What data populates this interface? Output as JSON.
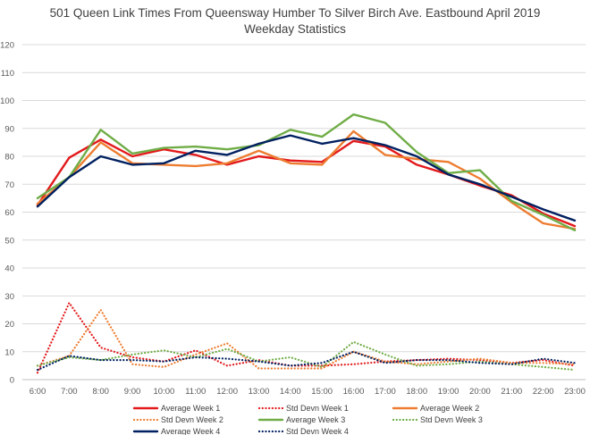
{
  "chart_data": {
    "type": "line",
    "title": "501 Queen Link Times From Queensway Humber To Silver Birch Ave. Eastbound April 2019",
    "subtitle": "Weekday Statistics",
    "xlabel": "",
    "ylabel": "",
    "ylim": [
      0,
      120
    ],
    "yticks": [
      0,
      10,
      20,
      30,
      40,
      50,
      60,
      70,
      80,
      90,
      100,
      110,
      120
    ],
    "grid": true,
    "legend_position": "bottom",
    "categories": [
      "6:00",
      "7:00",
      "8:00",
      "9:00",
      "10:00",
      "11:00",
      "12:00",
      "13:00",
      "14:00",
      "15:00",
      "16:00",
      "17:00",
      "18:00",
      "19:00",
      "20:00",
      "21:00",
      "22:00",
      "23:00"
    ],
    "series": [
      {
        "name": "Average Week 1",
        "color": "#e31a1c",
        "style": "solid",
        "values": [
          62.5,
          79.5,
          86,
          80,
          82.5,
          80.5,
          77,
          80,
          78.5,
          78,
          85.5,
          83.5,
          77,
          73.5,
          69.5,
          66,
          59.5,
          55
        ]
      },
      {
        "name": "Std Devn Week 1",
        "color": "#e31a1c",
        "style": "dotted",
        "values": [
          2.5,
          27.5,
          11.5,
          8,
          6.5,
          10.5,
          5,
          7,
          5,
          5,
          5.5,
          6.5,
          7,
          7.5,
          7,
          6,
          7,
          5
        ]
      },
      {
        "name": "Average Week 2",
        "color": "#ed7d31",
        "style": "solid",
        "values": [
          63,
          72.5,
          85,
          77.5,
          77,
          76.5,
          77.5,
          82,
          77.5,
          77,
          89,
          80.5,
          79,
          78,
          72,
          63.5,
          56,
          54
        ]
      },
      {
        "name": "Std Devn Week 2",
        "color": "#ed7d31",
        "style": "dotted",
        "values": [
          5,
          8.5,
          25,
          5.5,
          4.5,
          9,
          13,
          4,
          4,
          4,
          10,
          6.5,
          5.5,
          6.5,
          7.5,
          6,
          6,
          5.5
        ]
      },
      {
        "name": "Average Week 3",
        "color": "#70ad47",
        "style": "solid",
        "values": [
          65,
          72.5,
          89.5,
          81,
          83,
          83.5,
          82.5,
          84,
          89.5,
          87,
          95,
          92,
          81.5,
          74,
          75,
          64,
          59,
          53.5
        ]
      },
      {
        "name": "Std Devn Week 3",
        "color": "#70ad47",
        "style": "dotted",
        "values": [
          5,
          8,
          7,
          9,
          10.5,
          8,
          11,
          6.5,
          8,
          4.5,
          13.5,
          9,
          5,
          5.5,
          6.5,
          5.5,
          4.5,
          3.5
        ]
      },
      {
        "name": "Average Week 4",
        "color": "#002060",
        "style": "solid",
        "values": [
          62,
          72.5,
          80,
          77,
          77.5,
          82,
          80.5,
          84.5,
          87.5,
          84.5,
          86.5,
          84,
          80,
          73.5,
          70,
          65.5,
          61,
          57
        ]
      },
      {
        "name": "Std Devn Week 4",
        "color": "#002060",
        "style": "dotted",
        "values": [
          3.5,
          8.5,
          7,
          7,
          6.5,
          8,
          7.5,
          6.5,
          5,
          6,
          10,
          6,
          7,
          7,
          6,
          5.5,
          7.5,
          6
        ]
      }
    ]
  }
}
